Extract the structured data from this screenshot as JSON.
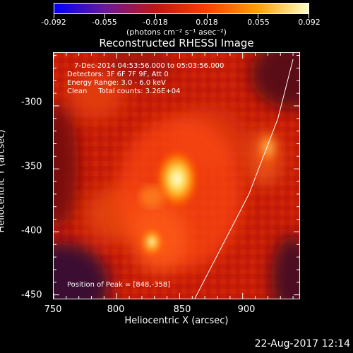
{
  "title": "Reconstructed RHESSI Image",
  "colorbar": {
    "tick_labels": [
      "-0.092",
      "-0.055",
      "-0.018",
      "0.018",
      "0.055",
      "0.092"
    ],
    "unit_label": "(photons cm⁻² s⁻¹ asec⁻²)",
    "colors": [
      "#0000ff",
      "#6a1a9a",
      "#c41414",
      "#ff4000",
      "#ffa000",
      "#ffffc8"
    ]
  },
  "annotations": {
    "time_range": "7-Dec-2014 04:53:56.000 to 05:03:56.000",
    "detectors": "Detectors: 3F 6F 7F 9F, Att 0",
    "energy": "Energy Range: 3.0 - 6.0 keV",
    "method": "Clean     Total counts: 3.26E+04",
    "peak": "Position of Peak = [848,-358]"
  },
  "axes": {
    "x_title": "Heliocentric X (arcsec)",
    "y_title": "Heliocentric Y (arcsec)",
    "x_ticks": [
      "750",
      "800",
      "850",
      "900"
    ],
    "y_ticks": [
      "-300",
      "-350",
      "-400",
      "-450"
    ],
    "x_range": [
      750,
      945
    ],
    "y_range": [
      -453,
      -258
    ]
  },
  "image_features": {
    "peak": [
      848,
      -358
    ],
    "secondary_source": [
      828,
      -408
    ],
    "limb_curve": [
      [
        862,
        -453
      ],
      [
        905,
        -370
      ],
      [
        928,
        -310
      ],
      [
        940,
        -263
      ]
    ]
  },
  "footer_date": "22-Aug-2017 12:14"
}
